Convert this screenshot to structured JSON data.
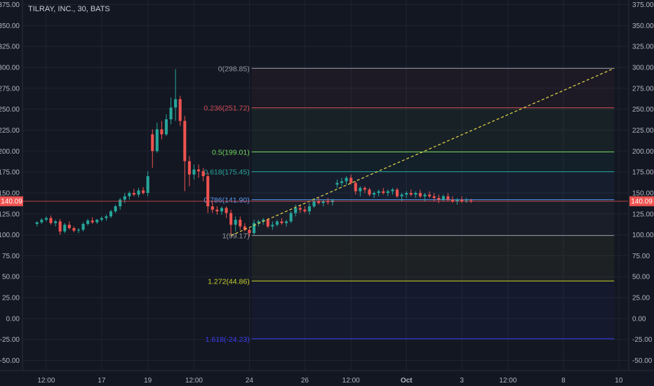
{
  "chart_data": {
    "type": "candlestick",
    "title": "TILRAY, INC., 30, BATS",
    "ylim": [
      -60,
      380
    ],
    "y_ticks": [
      "375.00",
      "350.00",
      "325.00",
      "300.00",
      "275.00",
      "250.00",
      "225.00",
      "200.00",
      "175.00",
      "150.00",
      "125.00",
      "100.00",
      "75.00",
      "50.00",
      "25.00",
      "0.00",
      "-25.00",
      "-50.00"
    ],
    "y_tick_values": [
      375,
      350,
      325,
      300,
      275,
      250,
      225,
      200,
      175,
      150,
      125,
      100,
      75,
      50,
      25,
      0,
      -25,
      -50
    ],
    "x_ticks": [
      "12:00",
      "17",
      "19",
      "12:00",
      "24",
      "26",
      "12:00",
      "Oct",
      "3",
      "12:00",
      "8",
      "10"
    ],
    "x_tick_index": [
      2,
      14,
      24,
      34,
      46,
      58,
      68,
      80,
      92,
      102,
      114,
      126
    ],
    "x_range": [
      -3,
      128
    ],
    "last_price": "140.09",
    "last_price_value": 140.09,
    "fib": [
      {
        "label": "0(298.85)",
        "value": 298.85,
        "color": "#9598a1"
      },
      {
        "label": "0.236(251.72)",
        "value": 251.72,
        "color": "#d14d56"
      },
      {
        "label": "0.5(199.01)",
        "value": 199.01,
        "color": "#6fd35c"
      },
      {
        "label": "0.618(175.45)",
        "value": 175.45,
        "color": "#26a69a"
      },
      {
        "label": "0.786(141.90)",
        "value": 141.9,
        "color": "#5b9cf6"
      },
      {
        "label": "1(99.17)",
        "value": 99.17,
        "color": "#9598a1"
      },
      {
        "label": "1.272(44.86)",
        "value": 44.86,
        "color": "#c9d12d"
      },
      {
        "label": "1.618(-24.23)",
        "value": -24.23,
        "color": "#3d3df0"
      }
    ],
    "fib_x_start": 46.5,
    "fib_x_end": 125,
    "trendline": {
      "x1": 42,
      "y1": 99.17,
      "x2": 125,
      "y2": 298.85,
      "color": "#e8d84a"
    },
    "candles": [
      [
        0,
        113,
        116,
        110,
        115
      ],
      [
        1,
        115,
        120,
        113,
        118
      ],
      [
        2,
        118,
        122,
        116,
        120
      ],
      [
        3,
        120,
        123,
        112,
        114
      ],
      [
        4,
        114,
        118,
        110,
        116
      ],
      [
        5,
        116,
        119,
        100,
        104
      ],
      [
        6,
        104,
        114,
        102,
        112
      ],
      [
        7,
        112,
        116,
        106,
        108
      ],
      [
        8,
        108,
        110,
        103,
        105
      ],
      [
        9,
        105,
        108,
        102,
        106
      ],
      [
        10,
        106,
        115,
        104,
        113
      ],
      [
        11,
        113,
        119,
        111,
        117
      ],
      [
        12,
        117,
        121,
        113,
        115
      ],
      [
        13,
        115,
        119,
        113,
        118
      ],
      [
        14,
        118,
        122,
        116,
        120
      ],
      [
        15,
        120,
        124,
        117,
        122
      ],
      [
        16,
        122,
        130,
        120,
        128
      ],
      [
        17,
        128,
        136,
        126,
        134
      ],
      [
        18,
        134,
        144,
        130,
        142
      ],
      [
        19,
        142,
        150,
        138,
        146
      ],
      [
        20,
        146,
        152,
        142,
        150
      ],
      [
        21,
        150,
        155,
        146,
        148
      ],
      [
        22,
        148,
        156,
        145,
        153
      ],
      [
        23,
        153,
        157,
        148,
        150
      ],
      [
        24,
        150,
        176,
        146,
        170
      ],
      [
        25,
        220,
        226,
        180,
        200
      ],
      [
        26,
        200,
        234,
        198,
        226
      ],
      [
        27,
        226,
        236,
        214,
        220
      ],
      [
        28,
        220,
        244,
        218,
        238
      ],
      [
        29,
        238,
        264,
        232,
        252
      ],
      [
        30,
        252,
        298,
        236,
        262
      ],
      [
        31,
        262,
        266,
        230,
        236
      ],
      [
        32,
        236,
        242,
        152,
        188
      ],
      [
        33,
        188,
        194,
        158,
        172
      ],
      [
        34,
        172,
        184,
        166,
        178
      ],
      [
        35,
        178,
        184,
        168,
        176
      ],
      [
        36,
        176,
        180,
        164,
        170
      ],
      [
        37,
        170,
        174,
        126,
        134
      ],
      [
        38,
        134,
        140,
        126,
        130
      ],
      [
        39,
        130,
        134,
        124,
        128
      ],
      [
        40,
        128,
        134,
        124,
        132
      ],
      [
        41,
        132,
        134,
        120,
        126
      ],
      [
        42,
        126,
        130,
        100,
        112
      ],
      [
        43,
        112,
        122,
        104,
        118
      ],
      [
        44,
        118,
        122,
        106,
        110
      ],
      [
        45,
        110,
        114,
        104,
        106
      ],
      [
        46,
        106,
        108,
        98,
        102
      ],
      [
        47,
        102,
        118,
        100,
        114
      ],
      [
        48,
        114,
        118,
        110,
        116
      ],
      [
        49,
        116,
        120,
        112,
        118
      ],
      [
        50,
        118,
        120,
        108,
        110
      ],
      [
        51,
        110,
        116,
        106,
        112
      ],
      [
        52,
        112,
        118,
        110,
        116
      ],
      [
        53,
        116,
        120,
        112,
        114
      ],
      [
        54,
        114,
        118,
        110,
        116
      ],
      [
        55,
        116,
        128,
        114,
        126
      ],
      [
        56,
        126,
        136,
        122,
        132
      ],
      [
        57,
        132,
        136,
        126,
        130
      ],
      [
        58,
        130,
        134,
        126,
        128
      ],
      [
        59,
        128,
        138,
        124,
        134
      ],
      [
        60,
        134,
        144,
        132,
        140
      ],
      [
        61,
        140,
        144,
        136,
        138
      ],
      [
        62,
        138,
        142,
        134,
        140
      ],
      [
        63,
        140,
        144,
        136,
        139
      ],
      [
        64,
        139,
        143,
        135,
        141
      ],
      [
        65,
        160,
        166,
        156,
        162
      ],
      [
        66,
        162,
        168,
        158,
        164
      ],
      [
        67,
        164,
        170,
        160,
        168
      ],
      [
        68,
        168,
        172,
        160,
        162
      ],
      [
        69,
        162,
        164,
        148,
        152
      ],
      [
        70,
        152,
        158,
        146,
        156
      ],
      [
        71,
        156,
        158,
        150,
        154
      ],
      [
        72,
        154,
        156,
        146,
        148
      ],
      [
        73,
        148,
        152,
        144,
        150
      ],
      [
        74,
        150,
        154,
        146,
        152
      ],
      [
        75,
        152,
        156,
        148,
        150
      ],
      [
        76,
        150,
        154,
        146,
        152
      ],
      [
        77,
        152,
        156,
        148,
        154
      ],
      [
        78,
        154,
        156,
        144,
        146
      ],
      [
        79,
        146,
        150,
        140,
        148
      ],
      [
        80,
        148,
        152,
        144,
        150
      ],
      [
        81,
        150,
        154,
        146,
        148
      ],
      [
        82,
        148,
        152,
        144,
        150
      ],
      [
        83,
        150,
        154,
        144,
        146
      ],
      [
        84,
        146,
        150,
        140,
        148
      ],
      [
        85,
        148,
        152,
        144,
        146
      ],
      [
        86,
        146,
        150,
        140,
        144
      ],
      [
        87,
        144,
        148,
        138,
        142
      ],
      [
        88,
        142,
        148,
        140,
        146
      ],
      [
        89,
        146,
        150,
        140,
        142
      ],
      [
        90,
        142,
        146,
        138,
        140
      ],
      [
        91,
        140,
        144,
        136,
        142
      ],
      [
        92,
        142,
        146,
        138,
        140
      ],
      [
        93,
        140,
        144,
        138,
        141
      ],
      [
        94,
        141,
        143,
        138,
        140
      ]
    ]
  }
}
